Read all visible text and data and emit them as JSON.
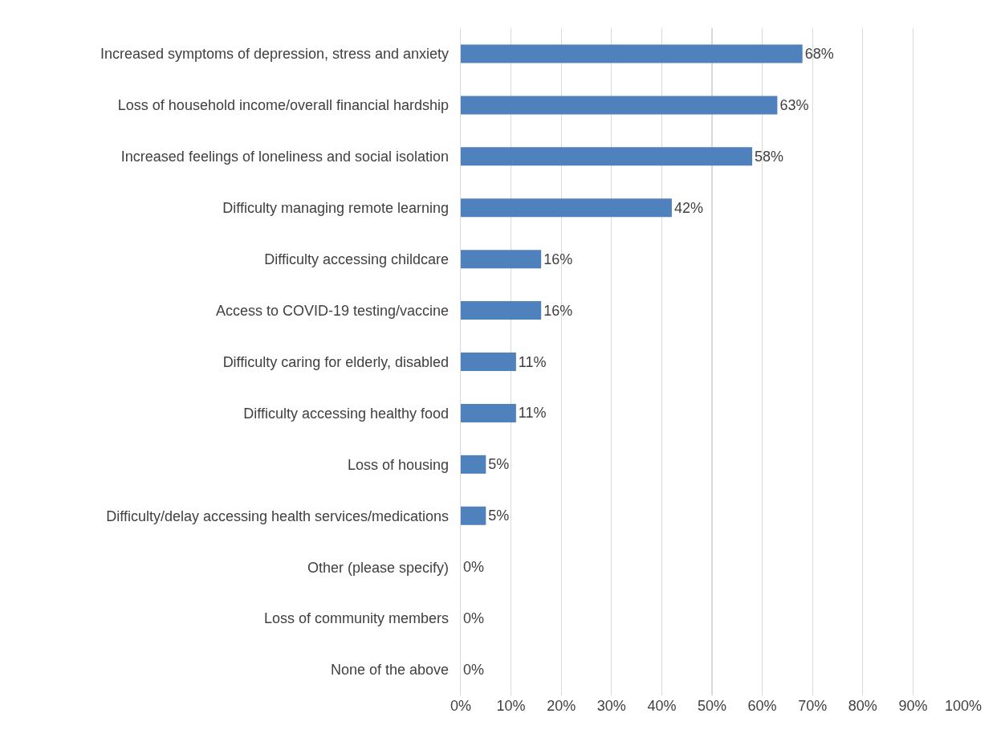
{
  "chart_data": {
    "type": "bar",
    "orientation": "horizontal",
    "categories": [
      "Increased symptoms of depression, stress and anxiety",
      "Loss of household income/overall financial hardship",
      "Increased feelings of loneliness and social isolation",
      "Difficulty managing remote learning",
      "Difficulty accessing childcare",
      "Access to COVID-19 testing/vaccine",
      "Difficulty caring for elderly, disabled",
      "Difficulty accessing healthy food",
      "Loss of housing",
      "Difficulty/delay accessing health services/medications",
      "Other (please specify)",
      "Loss of community members",
      "None of the above"
    ],
    "values": [
      68,
      63,
      58,
      42,
      16,
      16,
      11,
      11,
      5,
      5,
      0,
      0,
      0
    ],
    "value_labels": [
      "68%",
      "63%",
      "58%",
      "42%",
      "16%",
      "16%",
      "11%",
      "11%",
      "5%",
      "5%",
      "0%",
      "0%",
      "0%"
    ],
    "color": "#4f81bd",
    "xlim": [
      0,
      100
    ],
    "xticks": [
      {
        "value": 0,
        "label": "0%"
      },
      {
        "value": 10,
        "label": "10%"
      },
      {
        "value": 20,
        "label": "20%"
      },
      {
        "value": 30,
        "label": "30%"
      },
      {
        "value": 40,
        "label": "40%"
      },
      {
        "value": 50,
        "label": "50%"
      },
      {
        "value": 60,
        "label": "60%"
      },
      {
        "value": 70,
        "label": "70%"
      },
      {
        "value": 80,
        "label": "80%"
      },
      {
        "value": 90,
        "label": "90%"
      },
      {
        "value": 100,
        "label": "100%"
      }
    ],
    "grid": "x",
    "legend": false
  }
}
